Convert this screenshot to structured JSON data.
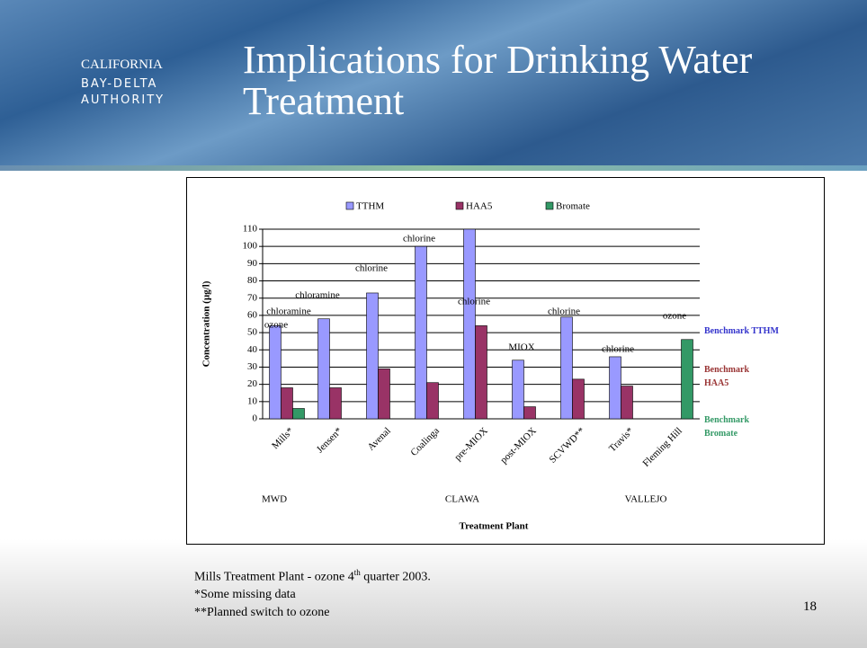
{
  "header": {
    "logo": [
      "CALIFORNIA",
      "BAY-DELTA",
      "AUTHORITY"
    ],
    "title": "Implications for Drinking Water Treatment"
  },
  "chart_data": {
    "type": "bar",
    "categories": [
      "Mills*",
      "Jensen*",
      "Avenal",
      "Coalinga",
      "pre-MIOX",
      "post-MIOX",
      "SCVWD**",
      "Travis*",
      "Fleming Hill"
    ],
    "series": [
      {
        "name": "TTHM",
        "color": "#9999ff",
        "values": [
          54,
          58,
          73,
          100,
          110,
          34,
          59,
          36,
          null
        ]
      },
      {
        "name": "HAA5",
        "color": "#993366",
        "values": [
          18,
          18,
          29,
          21,
          54,
          7,
          23,
          19,
          null
        ]
      },
      {
        "name": "Bromate",
        "color": "#339966",
        "values": [
          6,
          null,
          null,
          null,
          null,
          null,
          null,
          null,
          46
        ]
      }
    ],
    "ylim": [
      0,
      110
    ],
    "yticks": [
      0,
      10,
      20,
      30,
      40,
      50,
      60,
      70,
      80,
      90,
      100,
      110
    ],
    "grid": true,
    "y_label": "Concentration (µg/l)",
    "x_label": "Treatment Plant",
    "annotations": [
      "chloramine",
      "ozone",
      "chloramine",
      "chlorine",
      "chlorine",
      "chlorine",
      "MIOX",
      "chlorine",
      "chlorine",
      "ozone"
    ],
    "groups": [
      "MWD",
      "CLAWA",
      "VALLEJO"
    ],
    "benchmarks": [
      {
        "text": "Benchmark TTHM",
        "color": "#3333cc"
      },
      {
        "text": "Benchmark HAA5",
        "color": "#993333"
      },
      {
        "text": "Benchmark Bromate",
        "color": "#339966"
      }
    ]
  },
  "notes": {
    "line1": {
      "text": "Mills Treatment Plant - ozone 4",
      "sup": "th",
      "rest": " quarter 2003."
    },
    "line2": "*Some missing data",
    "line3": "**Planned switch to ozone"
  },
  "page_number": "18"
}
